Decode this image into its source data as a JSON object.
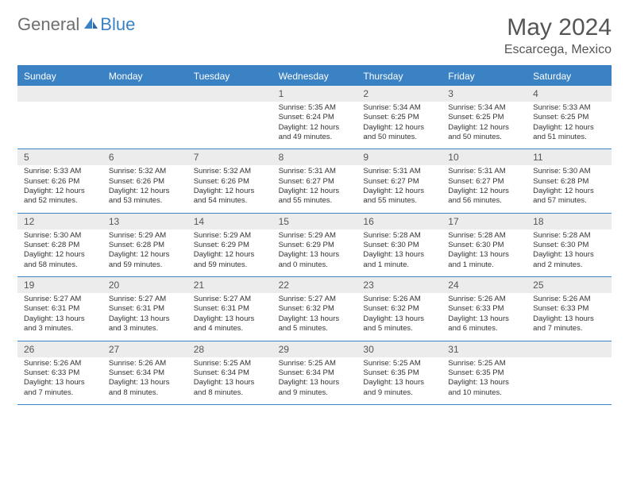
{
  "brand": {
    "part1": "General",
    "part2": "Blue"
  },
  "title": "May 2024",
  "location": "Escarcega, Mexico",
  "colors": {
    "accent": "#3a82c4",
    "header_text": "#ffffff",
    "daynum_bg": "#ececec",
    "text": "#333333",
    "title_text": "#555555"
  },
  "dayNames": [
    "Sunday",
    "Monday",
    "Tuesday",
    "Wednesday",
    "Thursday",
    "Friday",
    "Saturday"
  ],
  "weeks": [
    [
      {
        "n": "",
        "l1": "",
        "l2": "",
        "l3": "",
        "l4": ""
      },
      {
        "n": "",
        "l1": "",
        "l2": "",
        "l3": "",
        "l4": ""
      },
      {
        "n": "",
        "l1": "",
        "l2": "",
        "l3": "",
        "l4": ""
      },
      {
        "n": "1",
        "l1": "Sunrise: 5:35 AM",
        "l2": "Sunset: 6:24 PM",
        "l3": "Daylight: 12 hours",
        "l4": "and 49 minutes."
      },
      {
        "n": "2",
        "l1": "Sunrise: 5:34 AM",
        "l2": "Sunset: 6:25 PM",
        "l3": "Daylight: 12 hours",
        "l4": "and 50 minutes."
      },
      {
        "n": "3",
        "l1": "Sunrise: 5:34 AM",
        "l2": "Sunset: 6:25 PM",
        "l3": "Daylight: 12 hours",
        "l4": "and 50 minutes."
      },
      {
        "n": "4",
        "l1": "Sunrise: 5:33 AM",
        "l2": "Sunset: 6:25 PM",
        "l3": "Daylight: 12 hours",
        "l4": "and 51 minutes."
      }
    ],
    [
      {
        "n": "5",
        "l1": "Sunrise: 5:33 AM",
        "l2": "Sunset: 6:26 PM",
        "l3": "Daylight: 12 hours",
        "l4": "and 52 minutes."
      },
      {
        "n": "6",
        "l1": "Sunrise: 5:32 AM",
        "l2": "Sunset: 6:26 PM",
        "l3": "Daylight: 12 hours",
        "l4": "and 53 minutes."
      },
      {
        "n": "7",
        "l1": "Sunrise: 5:32 AM",
        "l2": "Sunset: 6:26 PM",
        "l3": "Daylight: 12 hours",
        "l4": "and 54 minutes."
      },
      {
        "n": "8",
        "l1": "Sunrise: 5:31 AM",
        "l2": "Sunset: 6:27 PM",
        "l3": "Daylight: 12 hours",
        "l4": "and 55 minutes."
      },
      {
        "n": "9",
        "l1": "Sunrise: 5:31 AM",
        "l2": "Sunset: 6:27 PM",
        "l3": "Daylight: 12 hours",
        "l4": "and 55 minutes."
      },
      {
        "n": "10",
        "l1": "Sunrise: 5:31 AM",
        "l2": "Sunset: 6:27 PM",
        "l3": "Daylight: 12 hours",
        "l4": "and 56 minutes."
      },
      {
        "n": "11",
        "l1": "Sunrise: 5:30 AM",
        "l2": "Sunset: 6:28 PM",
        "l3": "Daylight: 12 hours",
        "l4": "and 57 minutes."
      }
    ],
    [
      {
        "n": "12",
        "l1": "Sunrise: 5:30 AM",
        "l2": "Sunset: 6:28 PM",
        "l3": "Daylight: 12 hours",
        "l4": "and 58 minutes."
      },
      {
        "n": "13",
        "l1": "Sunrise: 5:29 AM",
        "l2": "Sunset: 6:28 PM",
        "l3": "Daylight: 12 hours",
        "l4": "and 59 minutes."
      },
      {
        "n": "14",
        "l1": "Sunrise: 5:29 AM",
        "l2": "Sunset: 6:29 PM",
        "l3": "Daylight: 12 hours",
        "l4": "and 59 minutes."
      },
      {
        "n": "15",
        "l1": "Sunrise: 5:29 AM",
        "l2": "Sunset: 6:29 PM",
        "l3": "Daylight: 13 hours",
        "l4": "and 0 minutes."
      },
      {
        "n": "16",
        "l1": "Sunrise: 5:28 AM",
        "l2": "Sunset: 6:30 PM",
        "l3": "Daylight: 13 hours",
        "l4": "and 1 minute."
      },
      {
        "n": "17",
        "l1": "Sunrise: 5:28 AM",
        "l2": "Sunset: 6:30 PM",
        "l3": "Daylight: 13 hours",
        "l4": "and 1 minute."
      },
      {
        "n": "18",
        "l1": "Sunrise: 5:28 AM",
        "l2": "Sunset: 6:30 PM",
        "l3": "Daylight: 13 hours",
        "l4": "and 2 minutes."
      }
    ],
    [
      {
        "n": "19",
        "l1": "Sunrise: 5:27 AM",
        "l2": "Sunset: 6:31 PM",
        "l3": "Daylight: 13 hours",
        "l4": "and 3 minutes."
      },
      {
        "n": "20",
        "l1": "Sunrise: 5:27 AM",
        "l2": "Sunset: 6:31 PM",
        "l3": "Daylight: 13 hours",
        "l4": "and 3 minutes."
      },
      {
        "n": "21",
        "l1": "Sunrise: 5:27 AM",
        "l2": "Sunset: 6:31 PM",
        "l3": "Daylight: 13 hours",
        "l4": "and 4 minutes."
      },
      {
        "n": "22",
        "l1": "Sunrise: 5:27 AM",
        "l2": "Sunset: 6:32 PM",
        "l3": "Daylight: 13 hours",
        "l4": "and 5 minutes."
      },
      {
        "n": "23",
        "l1": "Sunrise: 5:26 AM",
        "l2": "Sunset: 6:32 PM",
        "l3": "Daylight: 13 hours",
        "l4": "and 5 minutes."
      },
      {
        "n": "24",
        "l1": "Sunrise: 5:26 AM",
        "l2": "Sunset: 6:33 PM",
        "l3": "Daylight: 13 hours",
        "l4": "and 6 minutes."
      },
      {
        "n": "25",
        "l1": "Sunrise: 5:26 AM",
        "l2": "Sunset: 6:33 PM",
        "l3": "Daylight: 13 hours",
        "l4": "and 7 minutes."
      }
    ],
    [
      {
        "n": "26",
        "l1": "Sunrise: 5:26 AM",
        "l2": "Sunset: 6:33 PM",
        "l3": "Daylight: 13 hours",
        "l4": "and 7 minutes."
      },
      {
        "n": "27",
        "l1": "Sunrise: 5:26 AM",
        "l2": "Sunset: 6:34 PM",
        "l3": "Daylight: 13 hours",
        "l4": "and 8 minutes."
      },
      {
        "n": "28",
        "l1": "Sunrise: 5:25 AM",
        "l2": "Sunset: 6:34 PM",
        "l3": "Daylight: 13 hours",
        "l4": "and 8 minutes."
      },
      {
        "n": "29",
        "l1": "Sunrise: 5:25 AM",
        "l2": "Sunset: 6:34 PM",
        "l3": "Daylight: 13 hours",
        "l4": "and 9 minutes."
      },
      {
        "n": "30",
        "l1": "Sunrise: 5:25 AM",
        "l2": "Sunset: 6:35 PM",
        "l3": "Daylight: 13 hours",
        "l4": "and 9 minutes."
      },
      {
        "n": "31",
        "l1": "Sunrise: 5:25 AM",
        "l2": "Sunset: 6:35 PM",
        "l3": "Daylight: 13 hours",
        "l4": "and 10 minutes."
      },
      {
        "n": "",
        "l1": "",
        "l2": "",
        "l3": "",
        "l4": ""
      }
    ]
  ]
}
